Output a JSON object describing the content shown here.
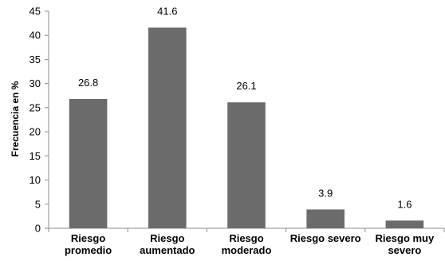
{
  "chart_data": {
    "type": "bar",
    "categories": [
      [
        "Riesgo",
        "promedio"
      ],
      [
        "Riesgo",
        "aumentado"
      ],
      [
        "Riesgo",
        "moderado"
      ],
      [
        "Riesgo severo"
      ],
      [
        "Riesgo muy",
        "severo"
      ]
    ],
    "values": [
      26.8,
      41.6,
      26.1,
      3.9,
      1.6
    ],
    "value_labels": [
      "26.8",
      "41.6",
      "26.1",
      "3.9",
      "1.6"
    ],
    "ylabel": "Frecuencia en %",
    "ylim": [
      0,
      45
    ],
    "yticks": [
      0,
      5,
      10,
      15,
      20,
      25,
      30,
      35,
      40,
      45
    ],
    "bar_color": "#6b6b6b",
    "grid": false,
    "legend": "none"
  }
}
